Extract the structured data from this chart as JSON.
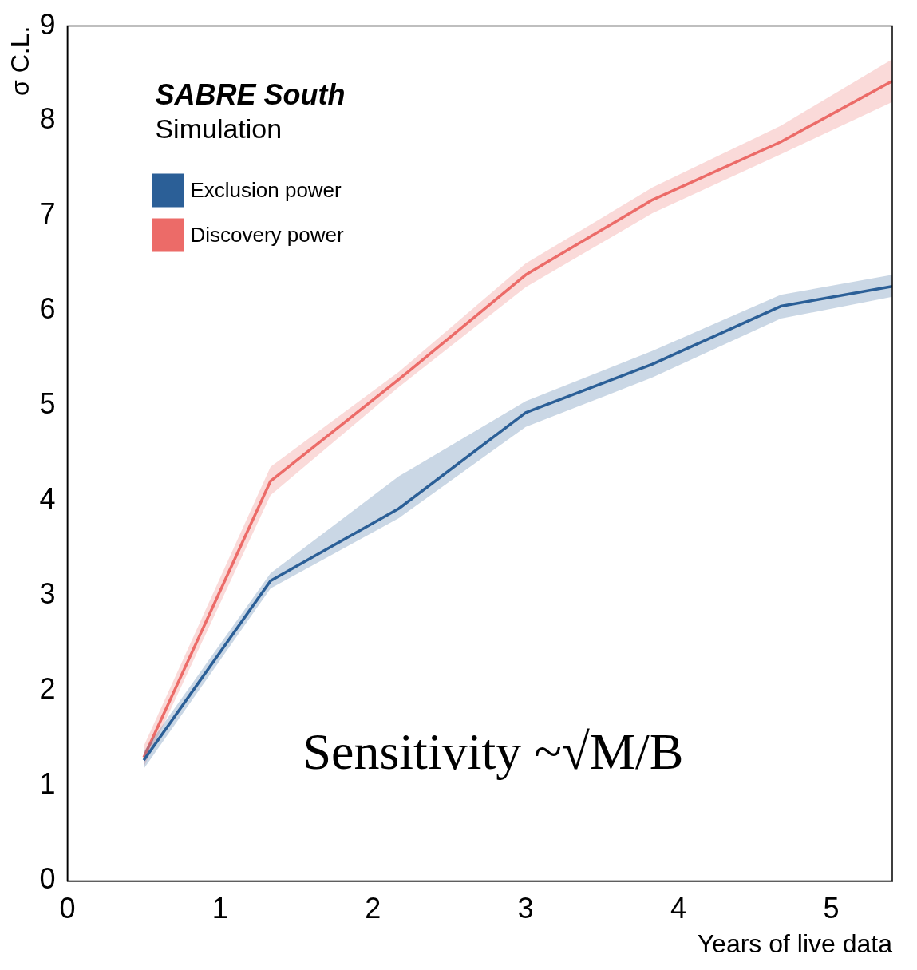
{
  "chart_data": {
    "type": "line",
    "xlabel": "Years of live data",
    "ylabel": "σ C.L.",
    "x": [
      0.5,
      1.33,
      2.17,
      3,
      3.83,
      4.67,
      5.4
    ],
    "series": [
      {
        "name": "Exclusion power",
        "color": "#2b5f97",
        "values": [
          1.27,
          3.16,
          3.92,
          4.93,
          5.44,
          6.05,
          6.26
        ],
        "lower": [
          1.18,
          3.08,
          3.82,
          4.78,
          5.3,
          5.92,
          6.15
        ],
        "upper": [
          1.36,
          3.24,
          4.26,
          5.05,
          5.58,
          6.17,
          6.38
        ]
      },
      {
        "name": "Discovery power",
        "color": "#ec6b68",
        "values": [
          1.3,
          4.21,
          5.28,
          6.38,
          7.17,
          7.78,
          8.42
        ],
        "lower": [
          1.2,
          4.06,
          5.2,
          6.25,
          7.03,
          7.65,
          8.2
        ],
        "upper": [
          1.42,
          4.36,
          5.36,
          6.5,
          7.3,
          7.95,
          8.65
        ]
      }
    ],
    "xlim": [
      0,
      5.4
    ],
    "xticks": [
      0,
      1,
      2,
      3,
      4,
      5
    ],
    "ylim": [
      0,
      9
    ],
    "yticks": [
      0,
      1,
      2,
      3,
      4,
      5,
      6,
      7,
      8,
      9
    ],
    "grid": false,
    "legend": "top left",
    "marker": "none",
    "line_style": "solid",
    "annotations": [
      "SABRE South",
      "Simulation",
      "Sensitivity ~√M/B"
    ]
  }
}
